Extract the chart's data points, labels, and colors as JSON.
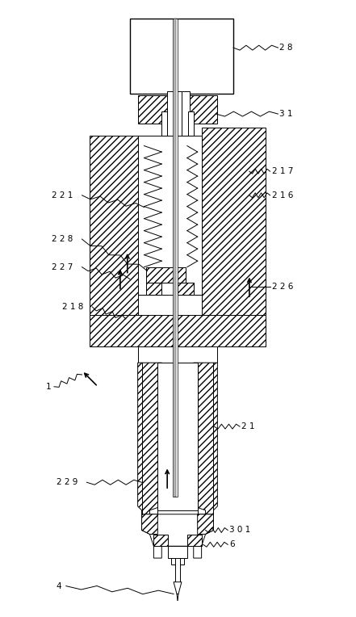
{
  "fig_width": 4.41,
  "fig_height": 7.64,
  "dpi": 100,
  "bg_color": "#ffffff",
  "line_color": "#000000"
}
